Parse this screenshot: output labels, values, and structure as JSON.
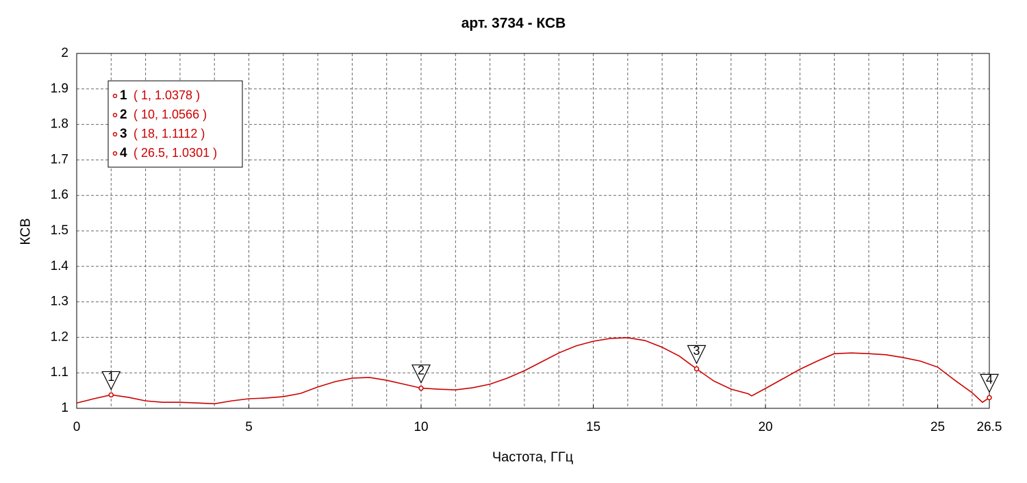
{
  "chart_data": {
    "type": "line",
    "title": "арт. 3734 - КСВ",
    "xlabel": "Частота, ГГц",
    "ylabel": "КСВ",
    "x": [
      0,
      0.5,
      1,
      1.5,
      2,
      2.5,
      3,
      3.5,
      4,
      4.5,
      5,
      5.5,
      6,
      6.5,
      7,
      7.5,
      8,
      8.5,
      9,
      9.5,
      10,
      10.5,
      11,
      11.5,
      12,
      12.5,
      13,
      13.5,
      14,
      14.5,
      15,
      15.5,
      16,
      16.5,
      17,
      17.5,
      18,
      18.5,
      19,
      19.5,
      19.6,
      20,
      20.5,
      21,
      21.5,
      22,
      22.5,
      23,
      23.5,
      24,
      24.5,
      25,
      25.5,
      26,
      26.3,
      26.5
    ],
    "series": [
      {
        "name": "КСВ",
        "color": "#cc0000",
        "values": [
          1.015,
          1.027,
          1.038,
          1.031,
          1.021,
          1.017,
          1.017,
          1.015,
          1.013,
          1.021,
          1.027,
          1.029,
          1.033,
          1.042,
          1.06,
          1.075,
          1.085,
          1.087,
          1.079,
          1.068,
          1.057,
          1.054,
          1.052,
          1.058,
          1.068,
          1.085,
          1.106,
          1.131,
          1.156,
          1.176,
          1.189,
          1.197,
          1.199,
          1.191,
          1.172,
          1.147,
          1.111,
          1.077,
          1.054,
          1.041,
          1.035,
          1.056,
          1.083,
          1.11,
          1.133,
          1.154,
          1.156,
          1.154,
          1.151,
          1.143,
          1.133,
          1.116,
          1.079,
          1.044,
          1.017,
          1.03
        ]
      }
    ],
    "markers": [
      {
        "label": "1",
        "x": 1,
        "y": 1.0378,
        "text": "( 1, 1.0378 )"
      },
      {
        "label": "2",
        "x": 10,
        "y": 1.0566,
        "text": "( 10, 1.0566 )"
      },
      {
        "label": "3",
        "x": 18,
        "y": 1.1112,
        "text": "( 18, 1.1112 )"
      },
      {
        "label": "4",
        "x": 26.5,
        "y": 1.0301,
        "text": "( 26.5, 1.0301 )"
      }
    ],
    "xlim": [
      0,
      26.5
    ],
    "xticks": [
      0,
      5,
      10,
      15,
      20,
      25,
      26.5
    ],
    "xgrid": [
      1,
      2,
      3,
      4,
      5,
      6,
      7,
      8,
      9,
      10,
      11,
      12,
      13,
      14,
      15,
      16,
      17,
      18,
      19,
      20,
      21,
      22,
      23,
      24,
      25,
      26
    ],
    "ylim": [
      1,
      2
    ],
    "yticks": [
      1,
      1.1,
      1.2,
      1.3,
      1.4,
      1.5,
      1.6,
      1.7,
      1.8,
      1.9,
      2
    ],
    "grid": true
  }
}
